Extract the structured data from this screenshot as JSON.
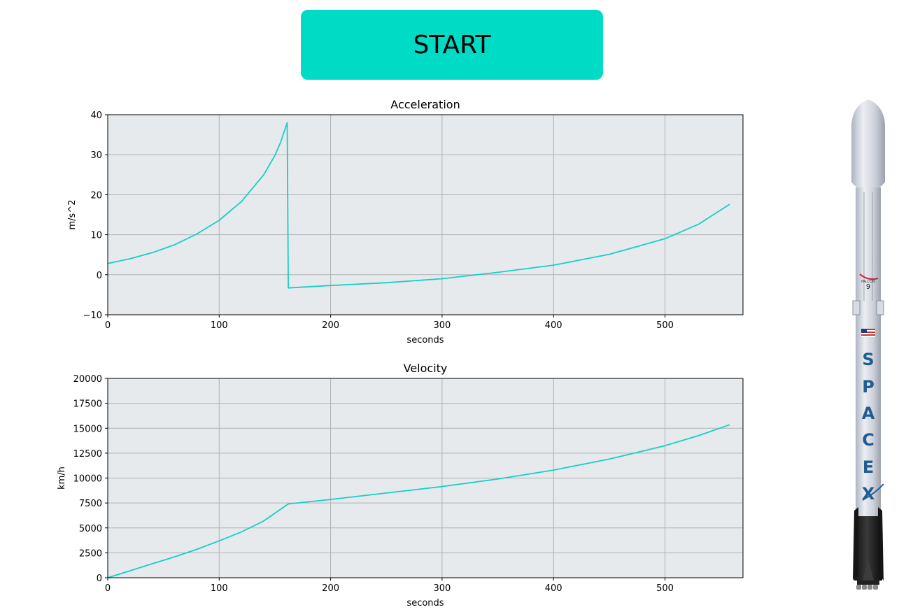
{
  "start_button": {
    "label": "START",
    "color": "#00DBC6"
  },
  "theme": {
    "plot_bg": "#E6EAED",
    "line": "#17CFC4",
    "grid": "#AEB2B5"
  },
  "rocket": {
    "logo_text": "FALCON",
    "logo_number": "9",
    "brand_letters": [
      "S",
      "P",
      "A",
      "C",
      "E",
      "X"
    ]
  },
  "chart_data": [
    {
      "type": "line",
      "title": "Acceleration",
      "xlabel": "seconds",
      "ylabel": "m/s^2",
      "xlim": [
        0,
        570
      ],
      "ylim": [
        -10,
        40
      ],
      "xticks": [
        0,
        100,
        200,
        300,
        400,
        500
      ],
      "yticks": [
        -10,
        0,
        10,
        20,
        30,
        40
      ],
      "ytick_labels": [
        "−10",
        "0",
        "10",
        "20",
        "30",
        "40"
      ],
      "grid": true,
      "series": [
        {
          "x": [
            0,
            20,
            40,
            60,
            80,
            100,
            120,
            140,
            150,
            155,
            161,
            162,
            200,
            250,
            300,
            350,
            400,
            450,
            500,
            530,
            558
          ],
          "values": [
            2.8,
            4.0,
            5.5,
            7.5,
            10.2,
            13.6,
            18.3,
            25.0,
            29.8,
            33.0,
            38.0,
            -3.3,
            -2.7,
            -2.0,
            -1.0,
            0.6,
            2.4,
            5.1,
            9.0,
            12.6,
            17.6
          ]
        }
      ]
    },
    {
      "type": "line",
      "title": "Velocity",
      "xlabel": "seconds",
      "ylabel": "km/h",
      "xlim": [
        0,
        570
      ],
      "ylim": [
        0,
        20000
      ],
      "xticks": [
        0,
        100,
        200,
        300,
        400,
        500
      ],
      "yticks": [
        0,
        2500,
        5000,
        7500,
        10000,
        12500,
        15000,
        17500,
        20000
      ],
      "ytick_labels": [
        "0",
        "2500",
        "5000",
        "7500",
        "10000",
        "12500",
        "15000",
        "17500",
        "20000"
      ],
      "grid": true,
      "series": [
        {
          "x": [
            0,
            20,
            40,
            60,
            80,
            100,
            120,
            140,
            162,
            200,
            250,
            300,
            350,
            400,
            450,
            500,
            530,
            558
          ],
          "values": [
            0,
            700,
            1400,
            2100,
            2850,
            3700,
            4600,
            5700,
            7400,
            7850,
            8500,
            9150,
            9900,
            10800,
            11900,
            13250,
            14250,
            15350
          ]
        }
      ]
    }
  ]
}
